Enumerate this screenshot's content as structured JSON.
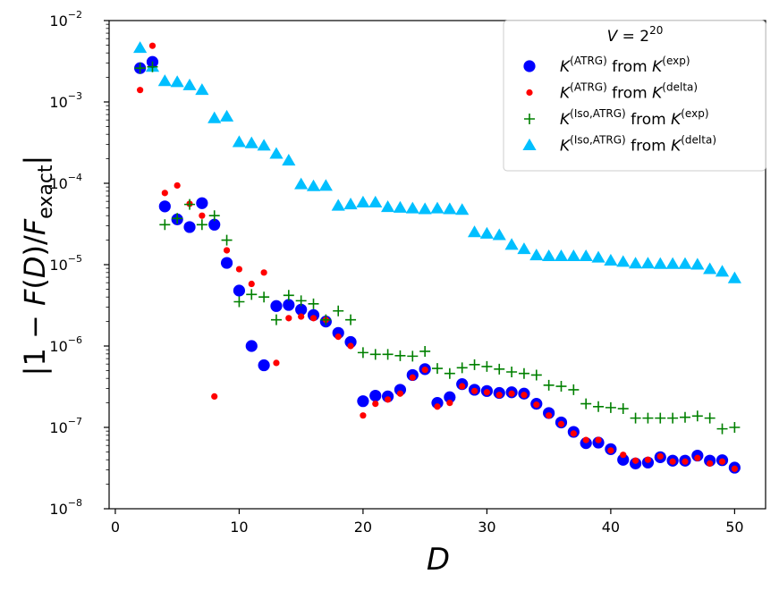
{
  "chart_data": {
    "type": "scatter",
    "title": "",
    "xlabel": "D",
    "ylabel": "|1 − F(D)/F_exact|",
    "xscale": "linear",
    "yscale": "log",
    "xlim": [
      -0.5,
      52.5
    ],
    "ylim": [
      1e-08,
      0.01
    ],
    "xticks": [
      0,
      10,
      20,
      30,
      40,
      50
    ],
    "yticks": [
      {
        "value": 1e-08,
        "base": "10",
        "exp": "−8"
      },
      {
        "value": 1e-07,
        "base": "10",
        "exp": "−7"
      },
      {
        "value": 1e-06,
        "base": "10",
        "exp": "−6"
      },
      {
        "value": 1e-05,
        "base": "10",
        "exp": "−5"
      },
      {
        "value": 0.0001,
        "base": "10",
        "exp": "−4"
      },
      {
        "value": 0.001,
        "base": "10",
        "exp": "−3"
      },
      {
        "value": 0.01,
        "base": "10",
        "exp": "−2"
      }
    ],
    "legend": {
      "position": "top-right",
      "title": "V = 2^20",
      "title_parts": {
        "prefix": "V = 2",
        "exp": "20"
      }
    },
    "series": [
      {
        "name": "K^(ATRG) from K^(exp)",
        "label_parts": {
          "a": "K",
          "a_sup": "(ATRG)",
          "mid": " from ",
          "b": "K",
          "b_sup": "(exp)"
        },
        "marker": "circle-large",
        "color": "#0000ff",
        "points": [
          [
            2,
            0.0026
          ],
          [
            3,
            0.0031
          ],
          [
            4,
            5.2e-05
          ],
          [
            5,
            3.6e-05
          ],
          [
            6,
            2.9e-05
          ],
          [
            7,
            5.7e-05
          ],
          [
            8,
            3.1e-05
          ],
          [
            9,
            1.05e-05
          ],
          [
            10,
            4.8e-06
          ],
          [
            11,
            1e-06
          ],
          [
            12,
            5.8e-07
          ],
          [
            13,
            3.1e-06
          ],
          [
            14,
            3.2e-06
          ],
          [
            15,
            2.8e-06
          ],
          [
            16,
            2.4e-06
          ],
          [
            17,
            2e-06
          ],
          [
            18,
            1.45e-06
          ],
          [
            19,
            1.12e-06
          ],
          [
            20,
            2.1e-07
          ],
          [
            21,
            2.45e-07
          ],
          [
            22,
            2.4e-07
          ],
          [
            23,
            2.9e-07
          ],
          [
            24,
            4.4e-07
          ],
          [
            25,
            5.2e-07
          ],
          [
            26,
            2e-07
          ],
          [
            27,
            2.35e-07
          ],
          [
            28,
            3.4e-07
          ],
          [
            29,
            2.9e-07
          ],
          [
            30,
            2.8e-07
          ],
          [
            31,
            2.65e-07
          ],
          [
            32,
            2.7e-07
          ],
          [
            33,
            2.6e-07
          ],
          [
            34,
            1.95e-07
          ],
          [
            35,
            1.5e-07
          ],
          [
            36,
            1.15e-07
          ],
          [
            37,
            8.8e-08
          ],
          [
            38,
            6.4e-08
          ],
          [
            39,
            6.5e-08
          ],
          [
            40,
            5.4e-08
          ],
          [
            41,
            4e-08
          ],
          [
            42,
            3.6e-08
          ],
          [
            43,
            3.7e-08
          ],
          [
            44,
            4.3e-08
          ],
          [
            45,
            3.9e-08
          ],
          [
            46,
            3.9e-08
          ],
          [
            47,
            4.5e-08
          ],
          [
            48,
            3.9e-08
          ],
          [
            49,
            3.95e-08
          ],
          [
            50,
            3.2e-08
          ]
        ]
      },
      {
        "name": "K^(ATRG) from K^(delta)",
        "label_parts": {
          "a": "K",
          "a_sup": "(ATRG)",
          "mid": " from ",
          "b": "K",
          "b_sup": "(delta)"
        },
        "marker": "circle-small",
        "color": "#ff0000",
        "points": [
          [
            2,
            0.0014
          ],
          [
            3,
            0.0049
          ],
          [
            4,
            7.6e-05
          ],
          [
            5,
            9.4e-05
          ],
          [
            6,
            5.6e-05
          ],
          [
            7,
            4e-05
          ],
          [
            8,
            2.4e-07
          ],
          [
            9,
            1.5e-05
          ],
          [
            10,
            8.8e-06
          ],
          [
            11,
            5.8e-06
          ],
          [
            12,
            8e-06
          ],
          [
            13,
            6.2e-07
          ],
          [
            14,
            2.2e-06
          ],
          [
            15,
            2.3e-06
          ],
          [
            16,
            2.2e-06
          ],
          [
            17,
            2.1e-06
          ],
          [
            18,
            1.3e-06
          ],
          [
            19,
            1e-06
          ],
          [
            20,
            1.4e-07
          ],
          [
            21,
            1.95e-07
          ],
          [
            22,
            2.2e-07
          ],
          [
            23,
            2.6e-07
          ],
          [
            24,
            4.1e-07
          ],
          [
            25,
            5.1e-07
          ],
          [
            26,
            1.8e-07
          ],
          [
            27,
            2e-07
          ],
          [
            28,
            3.2e-07
          ],
          [
            29,
            2.8e-07
          ],
          [
            30,
            2.7e-07
          ],
          [
            31,
            2.5e-07
          ],
          [
            32,
            2.6e-07
          ],
          [
            33,
            2.5e-07
          ],
          [
            34,
            1.9e-07
          ],
          [
            35,
            1.4e-07
          ],
          [
            36,
            1.1e-07
          ],
          [
            37,
            8.4e-08
          ],
          [
            38,
            7e-08
          ],
          [
            39,
            7e-08
          ],
          [
            40,
            5.2e-08
          ],
          [
            41,
            4.6e-08
          ],
          [
            42,
            3.9e-08
          ],
          [
            43,
            4e-08
          ],
          [
            44,
            4.4e-08
          ],
          [
            45,
            3.8e-08
          ],
          [
            46,
            3.8e-08
          ],
          [
            47,
            4.2e-08
          ],
          [
            48,
            3.6e-08
          ],
          [
            49,
            3.8e-08
          ],
          [
            50,
            3.1e-08
          ]
        ]
      },
      {
        "name": "K^(Iso,ATRG) from K^(exp)",
        "label_parts": {
          "a": "K",
          "a_sup": "(Iso,ATRG)",
          "mid": " from ",
          "b": "K",
          "b_sup": "(exp)"
        },
        "marker": "plus",
        "color": "#008000",
        "points": [
          [
            2,
            0.0026
          ],
          [
            3,
            0.0027
          ],
          [
            4,
            3.1e-05
          ],
          [
            5,
            3.7e-05
          ],
          [
            6,
            5.5e-05
          ],
          [
            7,
            3.1e-05
          ],
          [
            8,
            4e-05
          ],
          [
            9,
            2e-05
          ],
          [
            10,
            3.5e-06
          ],
          [
            11,
            4.3e-06
          ],
          [
            12,
            4e-06
          ],
          [
            13,
            2.1e-06
          ],
          [
            14,
            4.2e-06
          ],
          [
            15,
            3.6e-06
          ],
          [
            16,
            3.3e-06
          ],
          [
            17,
            2.1e-06
          ],
          [
            18,
            2.7e-06
          ],
          [
            19,
            2.1e-06
          ],
          [
            20,
            8.3e-07
          ],
          [
            21,
            7.9e-07
          ],
          [
            22,
            7.9e-07
          ],
          [
            23,
            7.6e-07
          ],
          [
            24,
            7.5e-07
          ],
          [
            25,
            8.6e-07
          ],
          [
            26,
            5.3e-07
          ],
          [
            27,
            4.6e-07
          ],
          [
            28,
            5.4e-07
          ],
          [
            29,
            5.9e-07
          ],
          [
            30,
            5.6e-07
          ],
          [
            31,
            5.2e-07
          ],
          [
            32,
            4.8e-07
          ],
          [
            33,
            4.6e-07
          ],
          [
            34,
            4.4e-07
          ],
          [
            35,
            3.3e-07
          ],
          [
            36,
            3.2e-07
          ],
          [
            37,
            2.9e-07
          ],
          [
            38,
            1.95e-07
          ],
          [
            39,
            1.8e-07
          ],
          [
            40,
            1.75e-07
          ],
          [
            41,
            1.7e-07
          ],
          [
            42,
            1.3e-07
          ],
          [
            43,
            1.3e-07
          ],
          [
            44,
            1.3e-07
          ],
          [
            45,
            1.3e-07
          ],
          [
            46,
            1.33e-07
          ],
          [
            47,
            1.38e-07
          ],
          [
            48,
            1.3e-07
          ],
          [
            49,
            9.6e-08
          ],
          [
            50,
            1e-07
          ]
        ]
      },
      {
        "name": "K^(Iso,ATRG) from K^(delta)",
        "label_parts": {
          "a": "K",
          "a_sup": "(Iso,ATRG)",
          "mid": " from ",
          "b": "K",
          "b_sup": "(delta)"
        },
        "marker": "triangle",
        "color": "#00bfff",
        "points": [
          [
            2,
            0.0046
          ],
          [
            3,
            0.0027
          ],
          [
            4,
            0.0018
          ],
          [
            5,
            0.00175
          ],
          [
            6,
            0.0016
          ],
          [
            7,
            0.0014
          ],
          [
            8,
            0.00063
          ],
          [
            9,
            0.00066
          ],
          [
            10,
            0.00032
          ],
          [
            11,
            0.00031
          ],
          [
            12,
            0.00029
          ],
          [
            13,
            0.00023
          ],
          [
            14,
            0.00019
          ],
          [
            15,
            9.7e-05
          ],
          [
            16,
            9.2e-05
          ],
          [
            17,
            9.3e-05
          ],
          [
            18,
            5.3e-05
          ],
          [
            19,
            5.5e-05
          ],
          [
            20,
            5.8e-05
          ],
          [
            21,
            5.8e-05
          ],
          [
            22,
            5.1e-05
          ],
          [
            23,
            5e-05
          ],
          [
            24,
            4.9e-05
          ],
          [
            25,
            4.8e-05
          ],
          [
            26,
            4.9e-05
          ],
          [
            27,
            4.8e-05
          ],
          [
            28,
            4.7e-05
          ],
          [
            29,
            2.5e-05
          ],
          [
            30,
            2.4e-05
          ],
          [
            31,
            2.3e-05
          ],
          [
            32,
            1.75e-05
          ],
          [
            33,
            1.55e-05
          ],
          [
            34,
            1.3e-05
          ],
          [
            35,
            1.27e-05
          ],
          [
            36,
            1.27e-05
          ],
          [
            37,
            1.27e-05
          ],
          [
            38,
            1.27e-05
          ],
          [
            39,
            1.22e-05
          ],
          [
            40,
            1.12e-05
          ],
          [
            41,
            1.08e-05
          ],
          [
            42,
            1.03e-05
          ],
          [
            43,
            1.03e-05
          ],
          [
            44,
            1.02e-05
          ],
          [
            45,
            1.02e-05
          ],
          [
            46,
            1.02e-05
          ],
          [
            47,
            1e-05
          ],
          [
            48,
            8.8e-06
          ],
          [
            49,
            8.2e-06
          ],
          [
            50,
            6.8e-06
          ]
        ]
      }
    ]
  }
}
